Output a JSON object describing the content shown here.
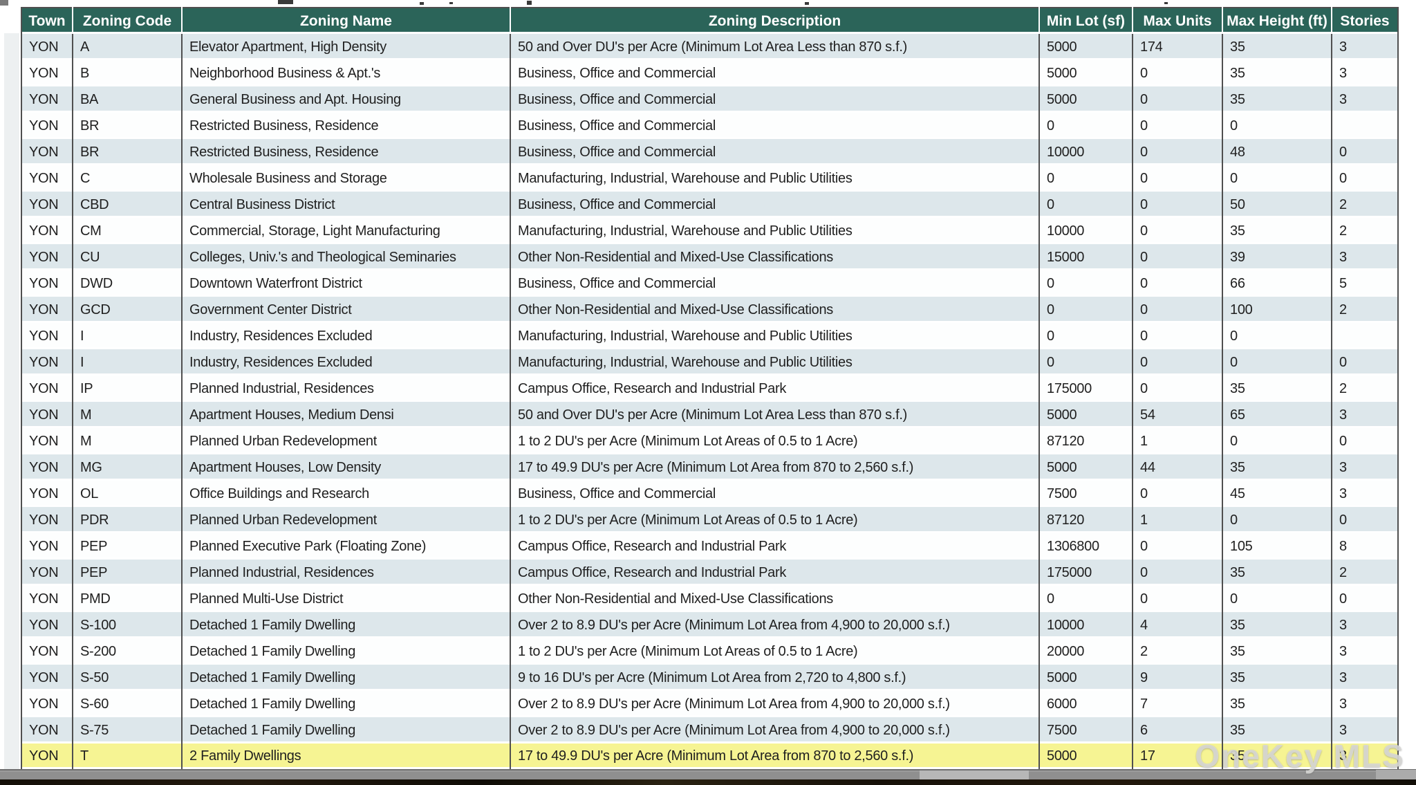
{
  "page": {
    "watermark": "OneKey MLS"
  },
  "colors": {
    "header_bg": "#2b6459",
    "row_alt": "#dde7eb",
    "row_plain": "#fdfefe",
    "row_highlight": "#f6f493",
    "grid_border": "#4f4f4f",
    "watermark_text": "#d8d8d6"
  },
  "table": {
    "columns": [
      "Town",
      "Zoning Code",
      "Zoning Name",
      "Zoning Description",
      "Min Lot (sf)",
      "Max Units",
      "Max Height (ft)",
      "Stories"
    ],
    "highlighted_row_index": 27,
    "rows": [
      [
        "YON",
        "A",
        "Elevator Apartment, High Density",
        "50 and Over DU's per Acre (Minimum Lot Area Less than 870 s.f.)",
        "5000",
        "174",
        "35",
        "3"
      ],
      [
        "YON",
        "B",
        "Neighborhood Business & Apt.'s",
        "Business, Office and Commercial",
        "5000",
        "0",
        "35",
        "3"
      ],
      [
        "YON",
        "BA",
        "General Business and Apt. Housing",
        "Business, Office and Commercial",
        "5000",
        "0",
        "35",
        "3"
      ],
      [
        "YON",
        "BR",
        "Restricted Business, Residence",
        "Business, Office and Commercial",
        "0",
        "0",
        "0",
        ""
      ],
      [
        "YON",
        "BR",
        "Restricted Business, Residence",
        "Business, Office and Commercial",
        "10000",
        "0",
        "48",
        "0"
      ],
      [
        "YON",
        "C",
        "Wholesale Business and Storage",
        "Manufacturing, Industrial, Warehouse and Public Utilities",
        "0",
        "0",
        "0",
        "0"
      ],
      [
        "YON",
        "CBD",
        "Central Business District",
        "Business, Office and Commercial",
        "0",
        "0",
        "50",
        "2"
      ],
      [
        "YON",
        "CM",
        "Commercial, Storage, Light Manufacturing",
        "Manufacturing, Industrial, Warehouse and Public Utilities",
        "10000",
        "0",
        "35",
        "2"
      ],
      [
        "YON",
        "CU",
        "Colleges, Univ.'s and Theological Seminaries",
        "Other Non-Residential and Mixed-Use Classifications",
        "15000",
        "0",
        "39",
        "3"
      ],
      [
        "YON",
        "DWD",
        "Downtown Waterfront District",
        "Business, Office and Commercial",
        "0",
        "0",
        "66",
        "5"
      ],
      [
        "YON",
        "GCD",
        "Government Center District",
        "Other Non-Residential and Mixed-Use Classifications",
        "0",
        "0",
        "100",
        "2"
      ],
      [
        "YON",
        "I",
        "Industry, Residences Excluded",
        "Manufacturing, Industrial, Warehouse and Public Utilities",
        "0",
        "0",
        "0",
        ""
      ],
      [
        "YON",
        "I",
        "Industry, Residences Excluded",
        "Manufacturing, Industrial, Warehouse and Public Utilities",
        "0",
        "0",
        "0",
        "0"
      ],
      [
        "YON",
        "IP",
        "Planned Industrial, Residences",
        "Campus Office, Research and Industrial Park",
        "175000",
        "0",
        "35",
        "2"
      ],
      [
        "YON",
        "M",
        "Apartment Houses, Medium Densi",
        "50 and Over DU's per Acre (Minimum Lot Area Less than 870 s.f.)",
        "5000",
        "54",
        "65",
        "3"
      ],
      [
        "YON",
        "M",
        "Planned Urban Redevelopment",
        "1 to 2 DU's per Acre (Minimum Lot Areas of 0.5 to 1 Acre)",
        "87120",
        "1",
        "0",
        "0"
      ],
      [
        "YON",
        "MG",
        "Apartment Houses, Low Density",
        "17 to 49.9 DU's per Acre (Minimum Lot Area from 870 to 2,560 s.f.)",
        "5000",
        "44",
        "35",
        "3"
      ],
      [
        "YON",
        "OL",
        "Office Buildings and Research",
        "Business, Office and Commercial",
        "7500",
        "0",
        "45",
        "3"
      ],
      [
        "YON",
        "PDR",
        "Planned Urban Redevelopment",
        "1 to 2 DU's per Acre (Minimum Lot Areas of 0.5 to 1 Acre)",
        "87120",
        "1",
        "0",
        "0"
      ],
      [
        "YON",
        "PEP",
        "Planned Executive Park (Floating Zone)",
        "Campus Office, Research and Industrial Park",
        "1306800",
        "0",
        "105",
        "8"
      ],
      [
        "YON",
        "PEP",
        "Planned Industrial, Residences",
        "Campus Office, Research and Industrial Park",
        "175000",
        "0",
        "35",
        "2"
      ],
      [
        "YON",
        "PMD",
        "Planned Multi-Use District",
        "Other Non-Residential and Mixed-Use Classifications",
        "0",
        "0",
        "0",
        "0"
      ],
      [
        "YON",
        "S-100",
        "Detached 1 Family Dwelling",
        "Over 2 to 8.9 DU's per Acre (Minimum Lot Area from 4,900 to 20,000 s.f.)",
        "10000",
        "4",
        "35",
        "3"
      ],
      [
        "YON",
        "S-200",
        "Detached 1 Family Dwelling",
        "1 to 2 DU's per Acre (Minimum Lot Areas of 0.5 to 1 Acre)",
        "20000",
        "2",
        "35",
        "3"
      ],
      [
        "YON",
        "S-50",
        "Detached 1 Family Dwelling",
        "9 to 16 DU's per Acre (Minimum Lot Area from 2,720 to 4,800 s.f.)",
        "5000",
        "9",
        "35",
        "3"
      ],
      [
        "YON",
        "S-60",
        "Detached 1 Family Dwelling",
        "Over 2 to 8.9 DU's per Acre (Minimum Lot Area from 4,900 to 20,000 s.f.)",
        "6000",
        "7",
        "35",
        "3"
      ],
      [
        "YON",
        "S-75",
        "Detached 1 Family Dwelling",
        "Over 2 to 8.9 DU's per Acre (Minimum Lot Area from 4,900 to 20,000 s.f.)",
        "7500",
        "6",
        "35",
        "3"
      ],
      [
        "YON",
        "T",
        "2 Family Dwellings",
        "17 to 49.9 DU's per Acre (Minimum Lot Area from 870 to 2,560 s.f.)",
        "5000",
        "17",
        "35",
        "3"
      ]
    ]
  }
}
